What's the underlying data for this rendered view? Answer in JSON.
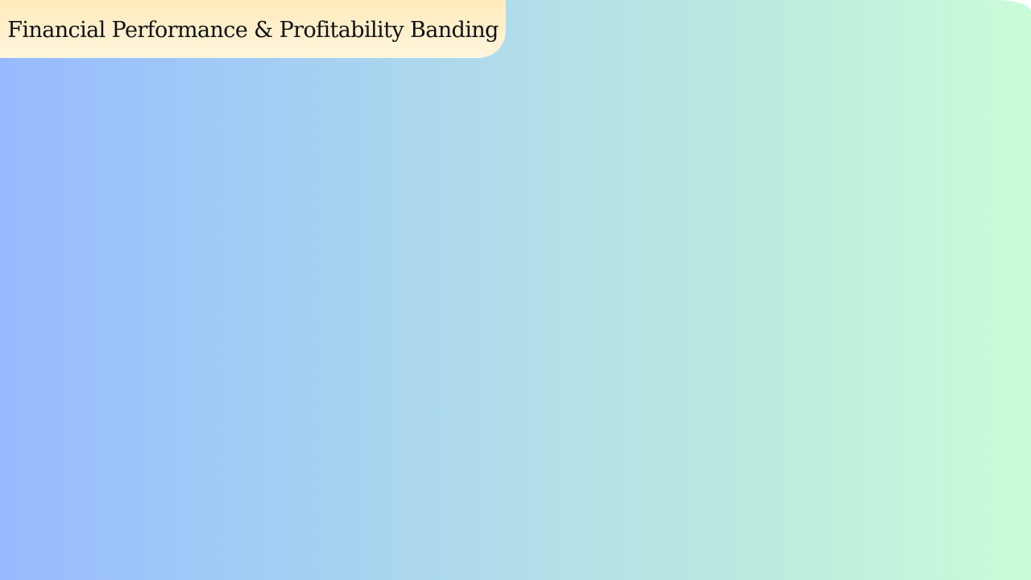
{
  "slide": {
    "title": "Financial Performance & Profitability Banding"
  },
  "colors": {
    "background_left": "#97baff",
    "background_right": "#cbfcd9",
    "title_tab_top": "#ffeabb",
    "title_tab_bottom": "#fff6de",
    "title_text": "#111111"
  }
}
